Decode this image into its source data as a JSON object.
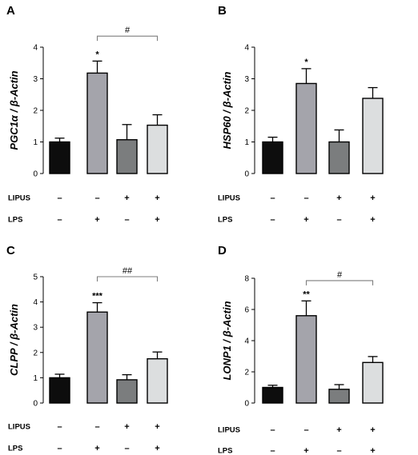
{
  "colors": [
    "#0d0d0d",
    "#a4a4ab",
    "#7b7d7e",
    "#dcdedf"
  ],
  "chart_data": [
    {
      "type": "bar",
      "panel": "A",
      "ylabel": "PGC1α / β-Actin",
      "ylim": [
        0,
        4
      ],
      "yticks": [
        "0",
        "1",
        "2",
        "3",
        "4"
      ],
      "values": [
        1.0,
        3.18,
        1.07,
        1.53
      ],
      "errors": [
        0.12,
        0.38,
        0.48,
        0.33
      ],
      "annotations": [
        "",
        "*",
        "",
        ""
      ],
      "bracket": {
        "from": 1,
        "to": 3,
        "label": "#",
        "y": 4.35
      },
      "row_labels": [
        "LIPUS",
        "LPS"
      ],
      "lipus": [
        "–",
        "–",
        "+",
        "+"
      ],
      "lps": [
        "–",
        "+",
        "–",
        "+"
      ]
    },
    {
      "type": "bar",
      "panel": "B",
      "ylabel": "HSP60 / β-Actin",
      "ylim": [
        0,
        4
      ],
      "yticks": [
        "0",
        "1",
        "2",
        "3",
        "4"
      ],
      "values": [
        1.0,
        2.85,
        1.0,
        2.38
      ],
      "errors": [
        0.15,
        0.47,
        0.38,
        0.34
      ],
      "annotations": [
        "",
        "*",
        "",
        ""
      ],
      "bracket": null,
      "row_labels": [
        "LIPUS",
        "LPS"
      ],
      "lipus": [
        "–",
        "–",
        "+",
        "+"
      ],
      "lps": [
        "–",
        "+",
        "–",
        "+"
      ]
    },
    {
      "type": "bar",
      "panel": "C",
      "ylabel": "CLPP / β-Actin",
      "ylim": [
        0,
        5
      ],
      "yticks": [
        "0",
        "1",
        "2",
        "3",
        "4",
        "5"
      ],
      "values": [
        1.0,
        3.6,
        0.92,
        1.75
      ],
      "errors": [
        0.14,
        0.37,
        0.2,
        0.27
      ],
      "annotations": [
        "",
        "***",
        "",
        ""
      ],
      "bracket": {
        "from": 1,
        "to": 3,
        "label": "##",
        "y": 5.0
      },
      "row_labels": [
        "LIPUS",
        "LPS"
      ],
      "lipus": [
        "–",
        "–",
        "+",
        "+"
      ],
      "lps": [
        "–",
        "+",
        "–",
        "+"
      ]
    },
    {
      "type": "bar",
      "panel": "D",
      "ylabel": "LONP1 / β-Actin",
      "ylim": [
        0,
        8
      ],
      "yticks": [
        "0",
        "2",
        "4",
        "6",
        "8"
      ],
      "values": [
        1.0,
        5.6,
        0.88,
        2.6
      ],
      "errors": [
        0.14,
        0.95,
        0.3,
        0.38
      ],
      "annotations": [
        "",
        "**",
        "",
        ""
      ],
      "bracket": {
        "from": 1,
        "to": 3,
        "label": "#",
        "y": 7.85
      },
      "row_labels": [
        "LIPUS",
        "LPS"
      ],
      "lipus": [
        "–",
        "–",
        "+",
        "+"
      ],
      "lps": [
        "–",
        "+",
        "–",
        "+"
      ]
    }
  ]
}
